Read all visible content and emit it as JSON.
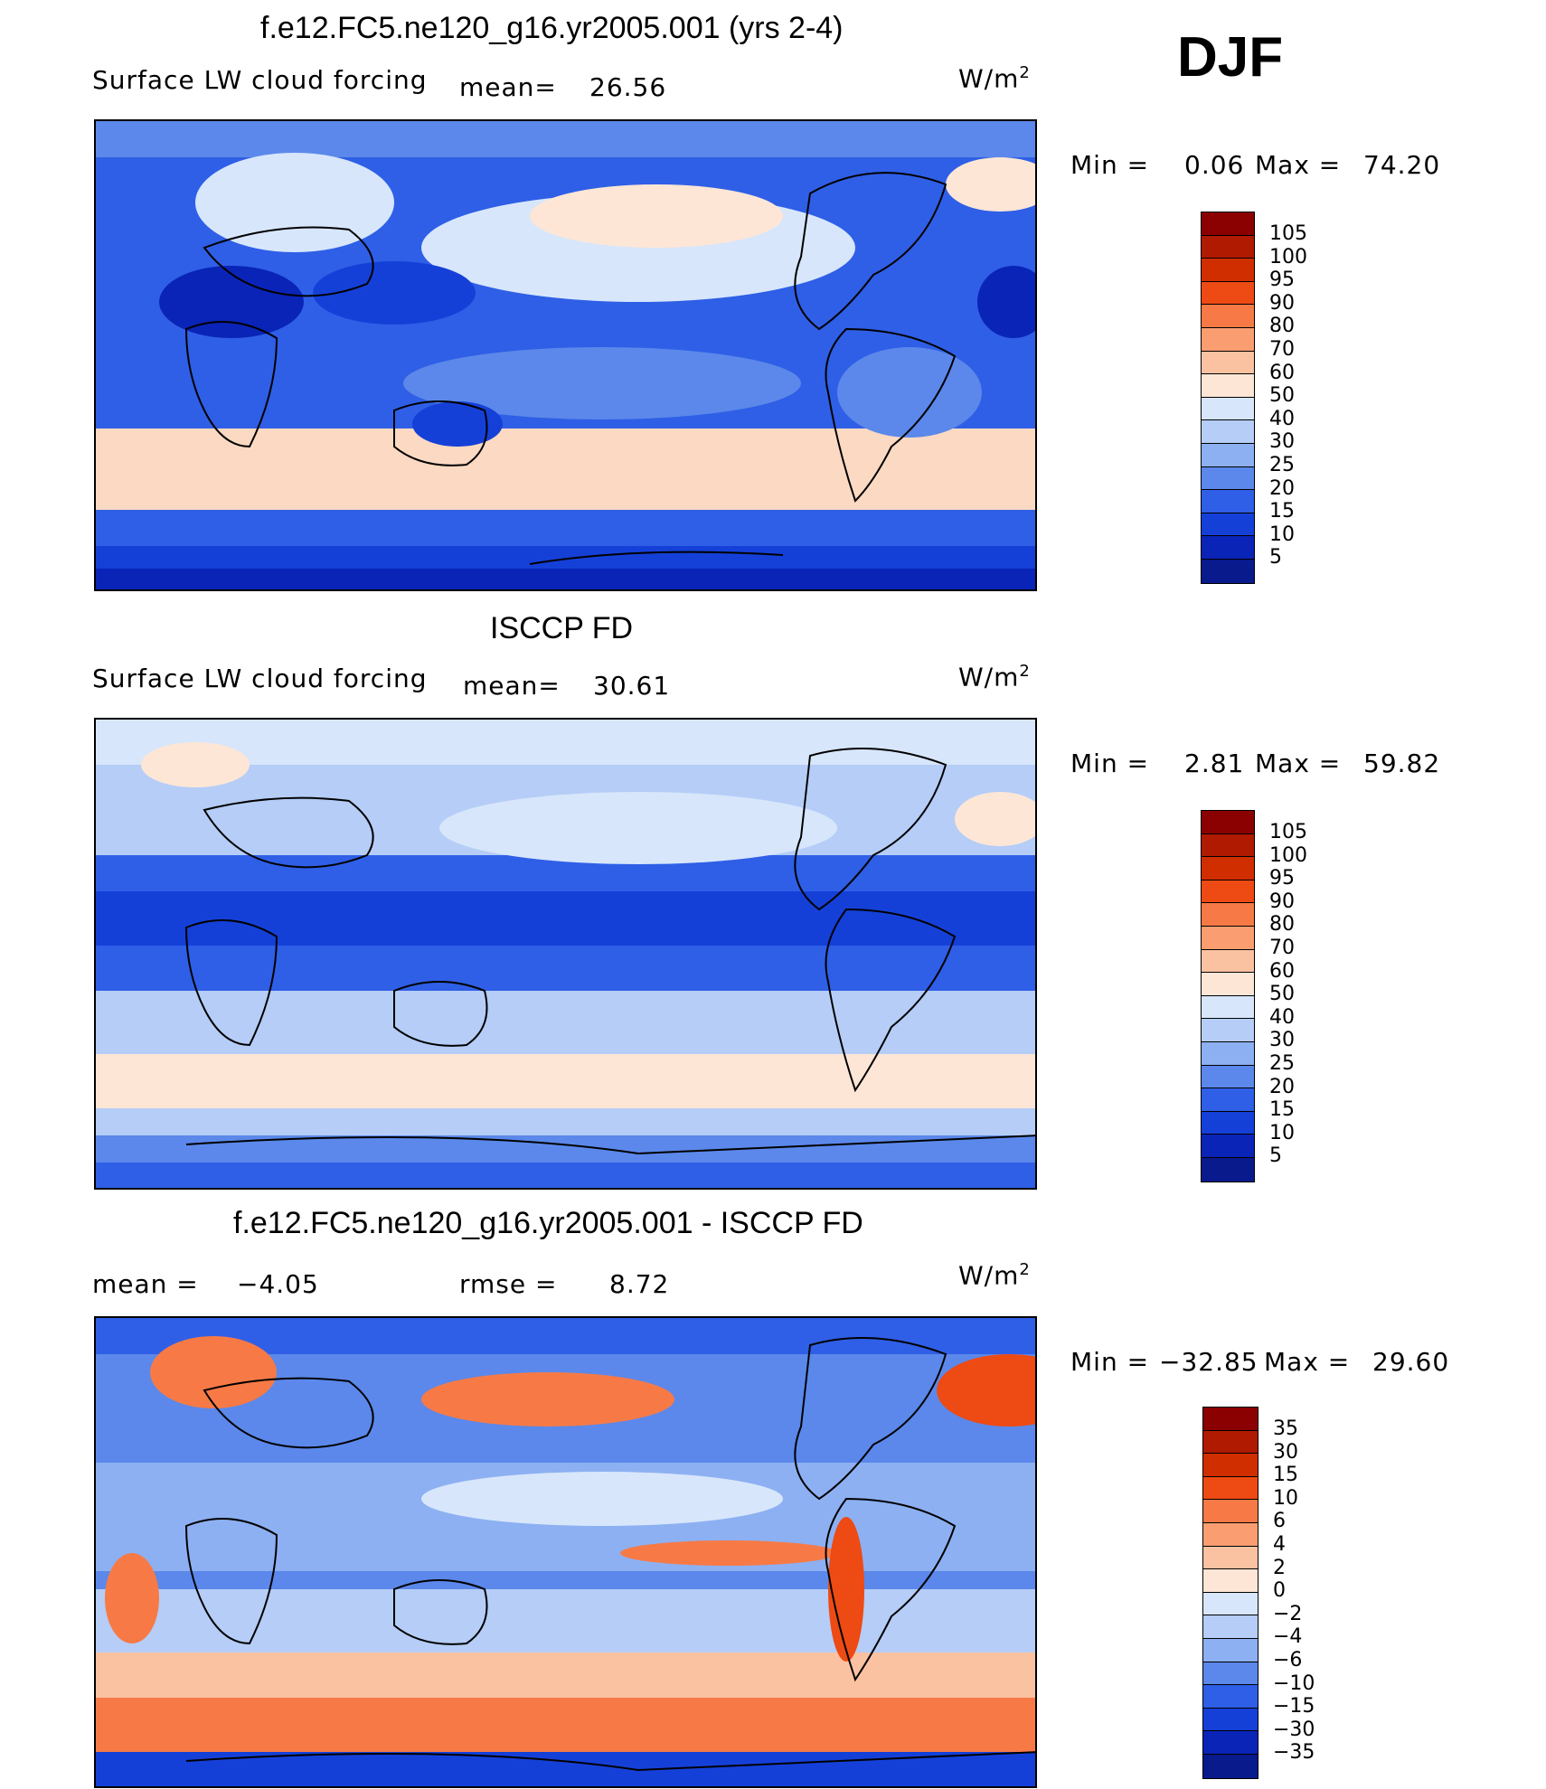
{
  "season": "DJF",
  "units_base": "W/m",
  "units_exp": "2",
  "panels": [
    {
      "title": "f.e12.FC5.ne120_g16.yr2005.001 (yrs 2-4)",
      "variable": "Surface LW cloud forcing",
      "stat1_label": "mean=",
      "stat1_value": "26.56",
      "minmax_label_min": "Min =",
      "min_value": "0.06",
      "minmax_label_max": "Max =",
      "max_value": "74.20"
    },
    {
      "title": "ISCCP FD",
      "variable": "Surface LW cloud forcing",
      "stat1_label": "mean=",
      "stat1_value": "30.61",
      "minmax_label_min": "Min =",
      "min_value": "2.81",
      "minmax_label_max": "Max =",
      "max_value": "59.82"
    },
    {
      "title": "f.e12.FC5.ne120_g16.yr2005.001 - ISCCP FD",
      "variable": "",
      "stat1_label": "mean =",
      "stat1_value": "−4.05",
      "stat2_label": "rmse =",
      "stat2_value": "8.72",
      "minmax_label_min": "Min =",
      "min_value": "−32.85",
      "minmax_label_max": "Max =",
      "max_value": "29.60"
    }
  ],
  "colorbars": {
    "absolute": {
      "levels": [
        "105",
        "100",
        "95",
        "90",
        "80",
        "70",
        "60",
        "50",
        "40",
        "30",
        "25",
        "20",
        "15",
        "10",
        "5"
      ],
      "colors": [
        "#8b0000",
        "#b01a00",
        "#d12e00",
        "#ee4a14",
        "#f77a46",
        "#fa9e72",
        "#fbc2a2",
        "#fde6d6",
        "#d7e6fb",
        "#b5cdf7",
        "#8db0f2",
        "#5b88ea",
        "#2f5fe6",
        "#1540d8",
        "#0a24b8",
        "#081a8c"
      ]
    },
    "difference": {
      "levels": [
        "35",
        "30",
        "15",
        "10",
        "6",
        "4",
        "2",
        "0",
        "−2",
        "−4",
        "−6",
        "−10",
        "−15",
        "−30",
        "−35"
      ],
      "colors": [
        "#8b0000",
        "#b01a00",
        "#d12e00",
        "#ee4a14",
        "#f77a46",
        "#fa9e72",
        "#fbc2a2",
        "#fde6d6",
        "#d7e6fb",
        "#b5cdf7",
        "#8db0f2",
        "#5b88ea",
        "#2f5fe6",
        "#1540d8",
        "#0a24b8",
        "#081a8c"
      ]
    }
  }
}
